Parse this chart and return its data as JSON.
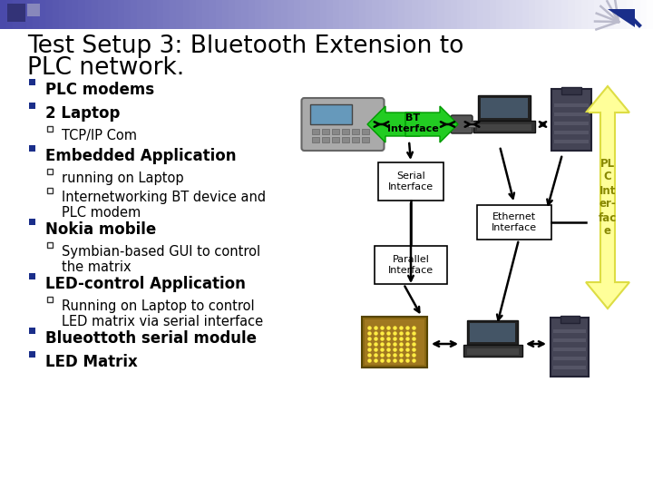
{
  "title_line1": "Test Setup 3: Bluetooth Extension to",
  "title_line2": "PLC network.",
  "background_color": "#ffffff",
  "title_color": "#000000",
  "title_fontsize": 19,
  "bullet_items": [
    {
      "level": 0,
      "text": "PLC modems"
    },
    {
      "level": 0,
      "text": "2 Laptop"
    },
    {
      "level": 1,
      "text": "TCP/IP Com"
    },
    {
      "level": 0,
      "text": "Embedded Application"
    },
    {
      "level": 1,
      "text": "running on Laptop"
    },
    {
      "level": 1,
      "text": "Internetworking BT device and\nPLC modem"
    },
    {
      "level": 0,
      "text": "Nokia mobile"
    },
    {
      "level": 1,
      "text": "Symbian-based GUI to control\nthe matrix"
    },
    {
      "level": 0,
      "text": "LED-control Application"
    },
    {
      "level": 1,
      "text": "Running on Laptop to control\nLED matrix via serial interface"
    },
    {
      "level": 0,
      "text": "Blueottoth serial module"
    },
    {
      "level": 0,
      "text": "LED Matrix"
    }
  ],
  "bullet_color_0": "#000000",
  "bullet_color_1": "#000000",
  "bullet_square_color": "#1a2e8a",
  "bullet_fontsize_0": 12,
  "bullet_fontsize_1": 10.5,
  "bt_color": "#22cc22",
  "bt_text": "BT\nInterface",
  "serial_text": "Serial\nInterface",
  "ethernet_text": "Ethernet\nInterface",
  "parallel_text": "Parallel\nInterface",
  "plc_arrow_color": "#ffff99",
  "plc_arrow_border": "#dddd44",
  "plc_text": "PL\nC\nInt\ner-\nfac\ne",
  "box_border": "#000000",
  "top_bar_color_left": "#4a4a9a",
  "top_bar_color_right": "#ffffff",
  "corner_blue": "#1a2e8a",
  "sq1_color": "#333377",
  "sq2_color": "#8888bb"
}
